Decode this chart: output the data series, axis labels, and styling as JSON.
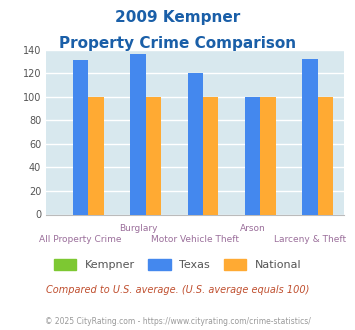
{
  "title_line1": "2009 Kempner",
  "title_line2": "Property Crime Comparison",
  "categories": [
    "All Property Crime",
    "Burglary",
    "Motor Vehicle Theft",
    "Arson",
    "Larceny & Theft"
  ],
  "kempner": [
    0,
    0,
    0,
    0,
    0
  ],
  "texas": [
    131,
    136,
    120,
    100,
    132
  ],
  "national": [
    100,
    100,
    100,
    100,
    100
  ],
  "kempner_color": "#7dc832",
  "texas_color": "#4488ee",
  "national_color": "#ffaa33",
  "ylim": [
    0,
    140
  ],
  "yticks": [
    0,
    20,
    40,
    60,
    80,
    100,
    120,
    140
  ],
  "background_color": "#d8e8ee",
  "grid_color": "#ffffff",
  "title_color": "#1a5fa8",
  "xlabel_color": "#9b6f9b",
  "footer_text": "© 2025 CityRating.com - https://www.cityrating.com/crime-statistics/",
  "compare_text": "Compared to U.S. average. (U.S. average equals 100)",
  "compare_color": "#c05030",
  "footer_color": "#999999",
  "legend_labels": [
    "Kempner",
    "Texas",
    "National"
  ],
  "legend_label_color": "#555555"
}
